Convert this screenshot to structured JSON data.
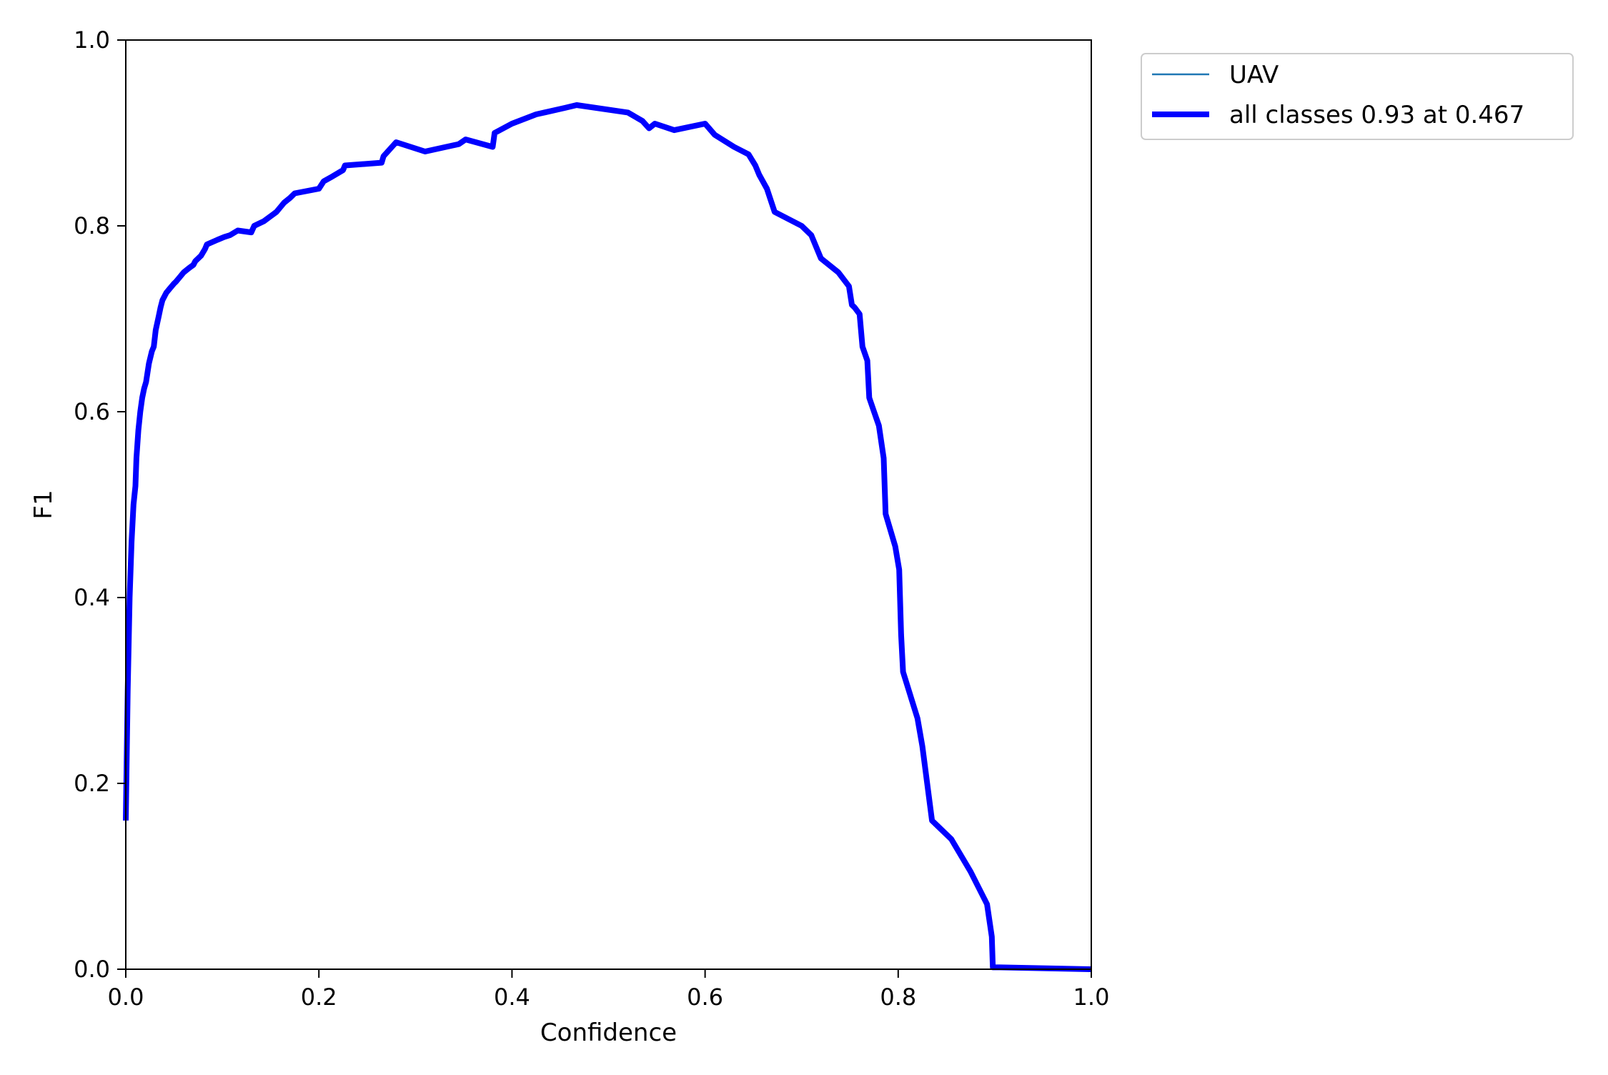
{
  "chart_data": {
    "type": "line",
    "title": "",
    "xlabel": "Confidence",
    "ylabel": "F1",
    "xlim": [
      0.0,
      1.0
    ],
    "ylim": [
      0.0,
      1.0
    ],
    "xticks": [
      "0.0",
      "0.2",
      "0.4",
      "0.6",
      "0.8",
      "1.0"
    ],
    "yticks": [
      "0.0",
      "0.2",
      "0.4",
      "0.6",
      "0.8",
      "1.0"
    ],
    "grid": false,
    "legend_position": "outside-upper-right",
    "series": [
      {
        "name": "UAV",
        "color": "#1f77b4",
        "x": [
          0.0,
          0.002,
          0.004,
          0.006,
          0.008,
          0.01,
          0.011,
          0.013,
          0.015,
          0.017,
          0.019,
          0.021,
          0.024,
          0.027,
          0.029,
          0.031,
          0.034,
          0.036,
          0.038,
          0.042,
          0.046,
          0.05,
          0.052,
          0.056,
          0.06,
          0.066,
          0.07,
          0.072,
          0.078,
          0.082,
          0.084,
          0.095,
          0.102,
          0.108,
          0.116,
          0.13,
          0.133,
          0.137,
          0.143,
          0.156,
          0.164,
          0.17,
          0.175,
          0.2,
          0.205,
          0.212,
          0.225,
          0.227,
          0.265,
          0.267,
          0.28,
          0.31,
          0.345,
          0.352,
          0.38,
          0.382,
          0.4,
          0.425,
          0.455,
          0.467,
          0.52,
          0.535,
          0.542,
          0.548,
          0.568,
          0.6,
          0.61,
          0.63,
          0.645,
          0.652,
          0.656,
          0.664,
          0.672,
          0.7,
          0.71,
          0.72,
          0.738,
          0.749,
          0.752,
          0.755,
          0.76,
          0.763,
          0.768,
          0.77,
          0.775,
          0.78,
          0.785,
          0.787,
          0.797,
          0.801,
          0.803,
          0.805,
          0.82,
          0.825,
          0.835,
          0.855,
          0.875,
          0.892,
          0.897,
          0.898,
          0.905,
          1.0
        ],
        "y": [
          0.16,
          0.3,
          0.4,
          0.46,
          0.5,
          0.52,
          0.55,
          0.58,
          0.6,
          0.615,
          0.625,
          0.632,
          0.652,
          0.665,
          0.67,
          0.688,
          0.702,
          0.712,
          0.72,
          0.728,
          0.733,
          0.738,
          0.74,
          0.745,
          0.75,
          0.755,
          0.758,
          0.762,
          0.768,
          0.775,
          0.78,
          0.785,
          0.788,
          0.79,
          0.795,
          0.793,
          0.8,
          0.802,
          0.805,
          0.815,
          0.825,
          0.83,
          0.835,
          0.84,
          0.848,
          0.852,
          0.86,
          0.865,
          0.868,
          0.875,
          0.89,
          0.88,
          0.888,
          0.893,
          0.885,
          0.9,
          0.91,
          0.92,
          0.927,
          0.93,
          0.922,
          0.913,
          0.905,
          0.91,
          0.903,
          0.91,
          0.898,
          0.885,
          0.877,
          0.865,
          0.855,
          0.84,
          0.815,
          0.8,
          0.79,
          0.765,
          0.75,
          0.735,
          0.715,
          0.712,
          0.705,
          0.67,
          0.655,
          0.615,
          0.6,
          0.585,
          0.55,
          0.49,
          0.455,
          0.43,
          0.36,
          0.32,
          0.27,
          0.24,
          0.16,
          0.14,
          0.105,
          0.07,
          0.035,
          0.002,
          0.002,
          0.0
        ]
      },
      {
        "name": "all classes 0.93 at 0.467",
        "color": "#0000ff",
        "x": [
          0.0,
          0.002,
          0.004,
          0.006,
          0.008,
          0.01,
          0.011,
          0.013,
          0.015,
          0.017,
          0.019,
          0.021,
          0.024,
          0.027,
          0.029,
          0.031,
          0.034,
          0.036,
          0.038,
          0.042,
          0.046,
          0.05,
          0.052,
          0.056,
          0.06,
          0.066,
          0.07,
          0.072,
          0.078,
          0.082,
          0.084,
          0.095,
          0.102,
          0.108,
          0.116,
          0.13,
          0.133,
          0.137,
          0.143,
          0.156,
          0.164,
          0.17,
          0.175,
          0.2,
          0.205,
          0.212,
          0.225,
          0.227,
          0.265,
          0.267,
          0.28,
          0.31,
          0.345,
          0.352,
          0.38,
          0.382,
          0.4,
          0.425,
          0.455,
          0.467,
          0.52,
          0.535,
          0.542,
          0.548,
          0.568,
          0.6,
          0.61,
          0.63,
          0.645,
          0.652,
          0.656,
          0.664,
          0.672,
          0.7,
          0.71,
          0.72,
          0.738,
          0.749,
          0.752,
          0.755,
          0.76,
          0.763,
          0.768,
          0.77,
          0.775,
          0.78,
          0.785,
          0.787,
          0.797,
          0.801,
          0.803,
          0.805,
          0.82,
          0.825,
          0.835,
          0.855,
          0.875,
          0.892,
          0.897,
          0.898,
          0.905,
          1.0
        ],
        "y": [
          0.16,
          0.3,
          0.4,
          0.46,
          0.5,
          0.52,
          0.55,
          0.58,
          0.6,
          0.615,
          0.625,
          0.632,
          0.652,
          0.665,
          0.67,
          0.688,
          0.702,
          0.712,
          0.72,
          0.728,
          0.733,
          0.738,
          0.74,
          0.745,
          0.75,
          0.755,
          0.758,
          0.762,
          0.768,
          0.775,
          0.78,
          0.785,
          0.788,
          0.79,
          0.795,
          0.793,
          0.8,
          0.802,
          0.805,
          0.815,
          0.825,
          0.83,
          0.835,
          0.84,
          0.848,
          0.852,
          0.86,
          0.865,
          0.868,
          0.875,
          0.89,
          0.88,
          0.888,
          0.893,
          0.885,
          0.9,
          0.91,
          0.92,
          0.927,
          0.93,
          0.922,
          0.913,
          0.905,
          0.91,
          0.903,
          0.91,
          0.898,
          0.885,
          0.877,
          0.865,
          0.855,
          0.84,
          0.815,
          0.8,
          0.79,
          0.765,
          0.75,
          0.735,
          0.715,
          0.712,
          0.705,
          0.67,
          0.655,
          0.615,
          0.6,
          0.585,
          0.55,
          0.49,
          0.455,
          0.43,
          0.36,
          0.32,
          0.27,
          0.24,
          0.16,
          0.14,
          0.105,
          0.07,
          0.035,
          0.002,
          0.002,
          0.0
        ]
      }
    ]
  }
}
